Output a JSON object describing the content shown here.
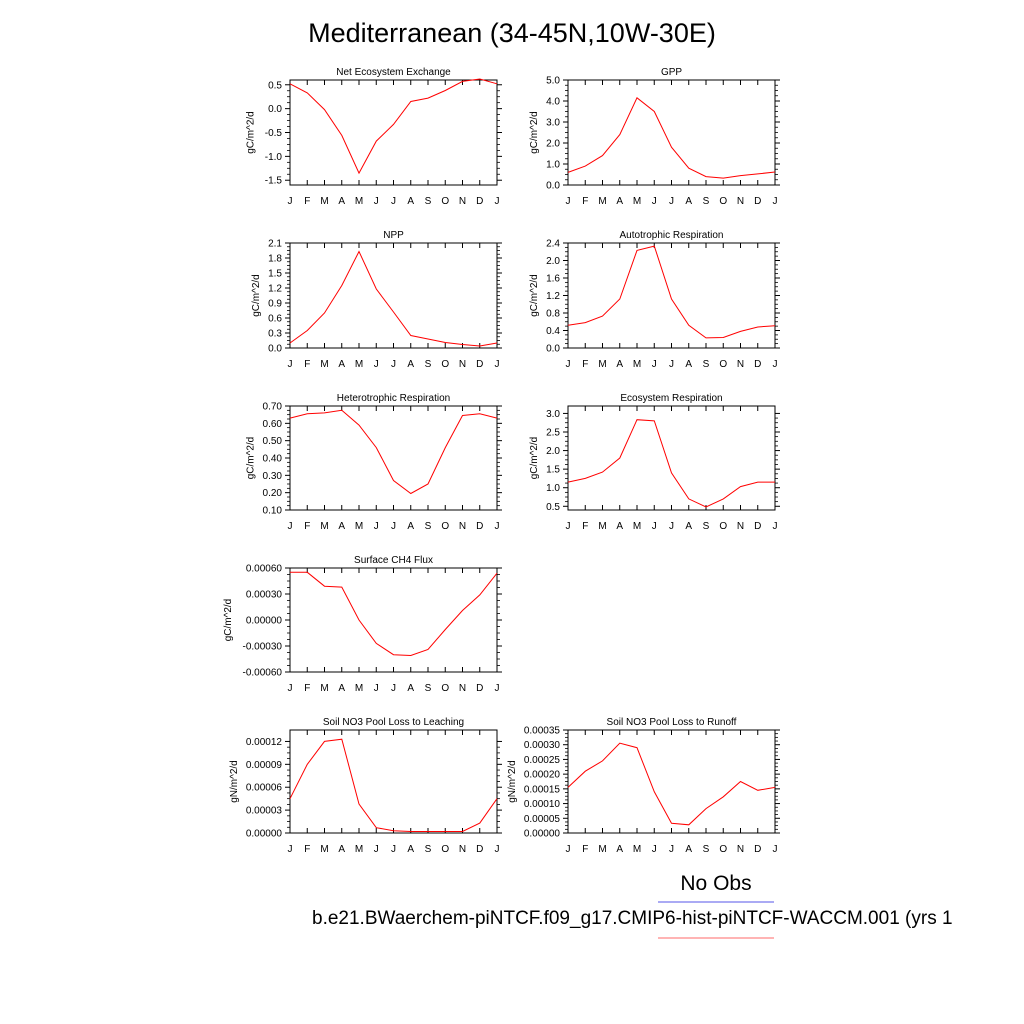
{
  "title": "Mediterranean (34-45N,10W-30E)",
  "legend": {
    "obs_label": "No Obs",
    "obs_color": "#7777ee",
    "case_label": "b.e21.BWaerchem-piNTCF.f09_g17.CMIP6-hist-piNTCF-WACCM.001 (yrs 1",
    "case_color": "#ff8888"
  },
  "months": [
    "J",
    "F",
    "M",
    "A",
    "M",
    "J",
    "J",
    "A",
    "S",
    "O",
    "N",
    "D",
    "J"
  ],
  "line_color": "#ff0000",
  "chart_data": [
    {
      "type": "line",
      "title": "Net Ecosystem Exchange",
      "ylabel": "gC/m^2/d",
      "ylim": [
        -1.6,
        0.6
      ],
      "yticks": [
        0.5,
        0.0,
        -0.5,
        -1.0,
        -1.5
      ],
      "ytick_labels": [
        "0.5",
        "0.0",
        "-0.5",
        "-1.0",
        "-1.5"
      ],
      "values": [
        0.52,
        0.33,
        -0.02,
        -0.56,
        -1.35,
        -0.68,
        -0.33,
        0.15,
        0.22,
        0.38,
        0.57,
        0.62,
        0.52
      ]
    },
    {
      "type": "line",
      "title": "GPP",
      "ylabel": "gC/m^2/d",
      "ylim": [
        0.0,
        5.0
      ],
      "yticks": [
        5.0,
        4.0,
        3.0,
        2.0,
        1.0,
        0.0
      ],
      "ytick_labels": [
        "5.0",
        "4.0",
        "3.0",
        "2.0",
        "1.0",
        "0.0"
      ],
      "values": [
        0.6,
        0.9,
        1.4,
        2.4,
        4.15,
        3.5,
        1.8,
        0.8,
        0.4,
        0.33,
        0.45,
        0.53,
        0.62
      ]
    },
    {
      "type": "line",
      "title": "NPP",
      "ylabel": "gC/m^2/d",
      "ylim": [
        0.0,
        2.1
      ],
      "yticks": [
        2.1,
        1.8,
        1.5,
        1.2,
        0.9,
        0.6,
        0.3,
        0.0
      ],
      "ytick_labels": [
        "2.1",
        "1.8",
        "1.5",
        "1.2",
        "0.9",
        "0.6",
        "0.3",
        "0.0"
      ],
      "values": [
        0.1,
        0.35,
        0.7,
        1.25,
        1.93,
        1.18,
        0.72,
        0.25,
        0.18,
        0.11,
        0.07,
        0.04,
        0.1
      ]
    },
    {
      "type": "line",
      "title": "Autotrophic Respiration",
      "ylabel": "gC/m^2/d",
      "ylim": [
        0.0,
        2.4
      ],
      "yticks": [
        2.4,
        2.0,
        1.6,
        1.2,
        0.8,
        0.4,
        0.0
      ],
      "ytick_labels": [
        "2.4",
        "2.0",
        "1.6",
        "1.2",
        "0.8",
        "0.4",
        "0.0"
      ],
      "values": [
        0.52,
        0.58,
        0.73,
        1.12,
        2.23,
        2.33,
        1.12,
        0.52,
        0.23,
        0.24,
        0.38,
        0.48,
        0.51
      ]
    },
    {
      "type": "line",
      "title": "Heterotrophic Respiration",
      "ylabel": "gC/m^2/d",
      "ylim": [
        0.1,
        0.7
      ],
      "yticks": [
        0.7,
        0.6,
        0.5,
        0.4,
        0.3,
        0.2,
        0.1
      ],
      "ytick_labels": [
        "0.70",
        "0.60",
        "0.50",
        "0.40",
        "0.30",
        "0.20",
        "0.10"
      ],
      "values": [
        0.63,
        0.655,
        0.66,
        0.675,
        0.59,
        0.46,
        0.27,
        0.195,
        0.25,
        0.46,
        0.645,
        0.655,
        0.63
      ]
    },
    {
      "type": "line",
      "title": "Ecosystem Respiration",
      "ylabel": "gC/m^2/d",
      "ylim": [
        0.4,
        3.2
      ],
      "yticks": [
        3.0,
        2.5,
        2.0,
        1.5,
        1.0,
        0.5
      ],
      "ytick_labels": [
        "3.0",
        "2.5",
        "2.0",
        "1.5",
        "1.0",
        "0.5"
      ],
      "values": [
        1.15,
        1.25,
        1.42,
        1.8,
        2.83,
        2.8,
        1.4,
        0.7,
        0.48,
        0.7,
        1.03,
        1.15,
        1.15
      ]
    },
    {
      "type": "line",
      "title": "Surface CH4 Flux",
      "ylabel": "gC/m^2/d",
      "ylim": [
        -0.0006,
        0.0006
      ],
      "yticks": [
        0.0006,
        0.0003,
        0.0,
        -0.0003,
        -0.0006
      ],
      "ytick_labels": [
        "0.00060",
        "0.00030",
        "0.00000",
        "-0.00030",
        "-0.00060"
      ],
      "values": [
        0.00055,
        0.00055,
        0.00039,
        0.00038,
        0.0,
        -0.00027,
        -0.0004,
        -0.00041,
        -0.00034,
        -0.00011,
        0.00011,
        0.00029,
        0.00054
      ]
    },
    {
      "type": "line",
      "title": "Soil NO3 Pool Loss to Leaching",
      "ylabel": "gN/m^2/d",
      "ylim": [
        0.0,
        0.000135
      ],
      "yticks": [
        0.00012,
        9e-05,
        6e-05,
        3e-05,
        0.0
      ],
      "ytick_labels": [
        "0.00012",
        "0.00009",
        "0.00006",
        "0.00003",
        "0.00000"
      ],
      "values": [
        4.5e-05,
        9e-05,
        0.00012,
        0.000123,
        3.8e-05,
        7e-06,
        3e-06,
        2e-06,
        2e-06,
        2e-06,
        2e-06,
        1.3e-05,
        4.5e-05
      ]
    },
    {
      "type": "line",
      "title": "Soil NO3 Pool Loss to Runoff",
      "ylabel": "gN/m^2/d",
      "ylim": [
        0.0,
        0.00035
      ],
      "yticks": [
        0.00035,
        0.0003,
        0.00025,
        0.0002,
        0.00015,
        0.0001,
        5e-05,
        0.0
      ],
      "ytick_labels": [
        "0.00035",
        "0.00030",
        "0.00025",
        "0.00020",
        "0.00015",
        "0.00010",
        "0.00005",
        "0.00000"
      ],
      "values": [
        0.000155,
        0.00021,
        0.000245,
        0.000305,
        0.00029,
        0.00014,
        3.3e-05,
        2.8e-05,
        8.3e-05,
        0.000123,
        0.000175,
        0.000145,
        0.000155
      ]
    }
  ]
}
